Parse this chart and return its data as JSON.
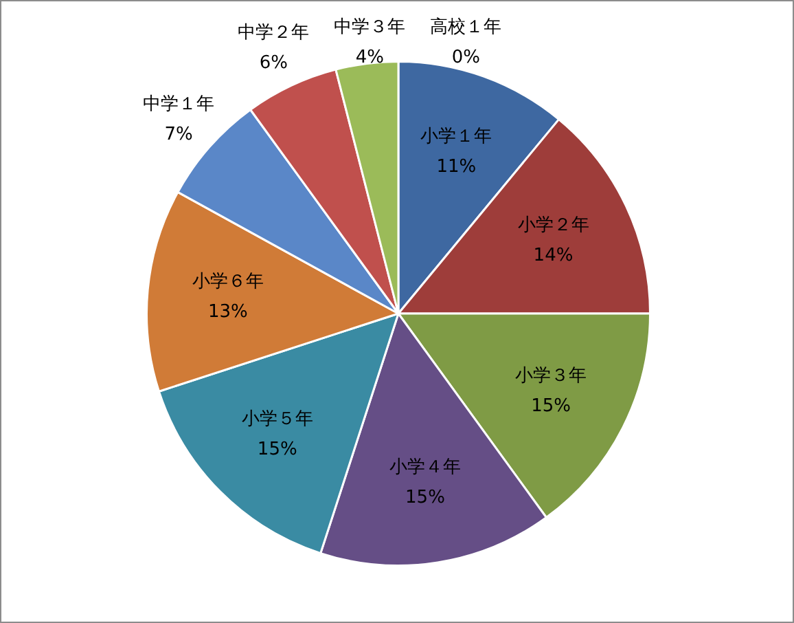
{
  "chart_data": {
    "type": "pie",
    "categories": [
      "小学１年",
      "小学２年",
      "小学３年",
      "小学４年",
      "小学５年",
      "小学６年",
      "中学１年",
      "中学２年",
      "中学３年",
      "高校１年"
    ],
    "values": [
      11,
      14,
      15,
      15,
      15,
      13,
      7,
      6,
      4,
      0
    ],
    "value_labels": [
      "11%",
      "14%",
      "15%",
      "15%",
      "15%",
      "13%",
      "7%",
      "6%",
      "4%",
      "0%"
    ],
    "colors": [
      "#3e68a1",
      "#9e3d3a",
      "#7f9b45",
      "#654e86",
      "#3a8ba3",
      "#d07b37",
      "#5a87c8",
      "#c0504d",
      "#9bbb59",
      "#a6bcdc"
    ],
    "legend": false
  }
}
